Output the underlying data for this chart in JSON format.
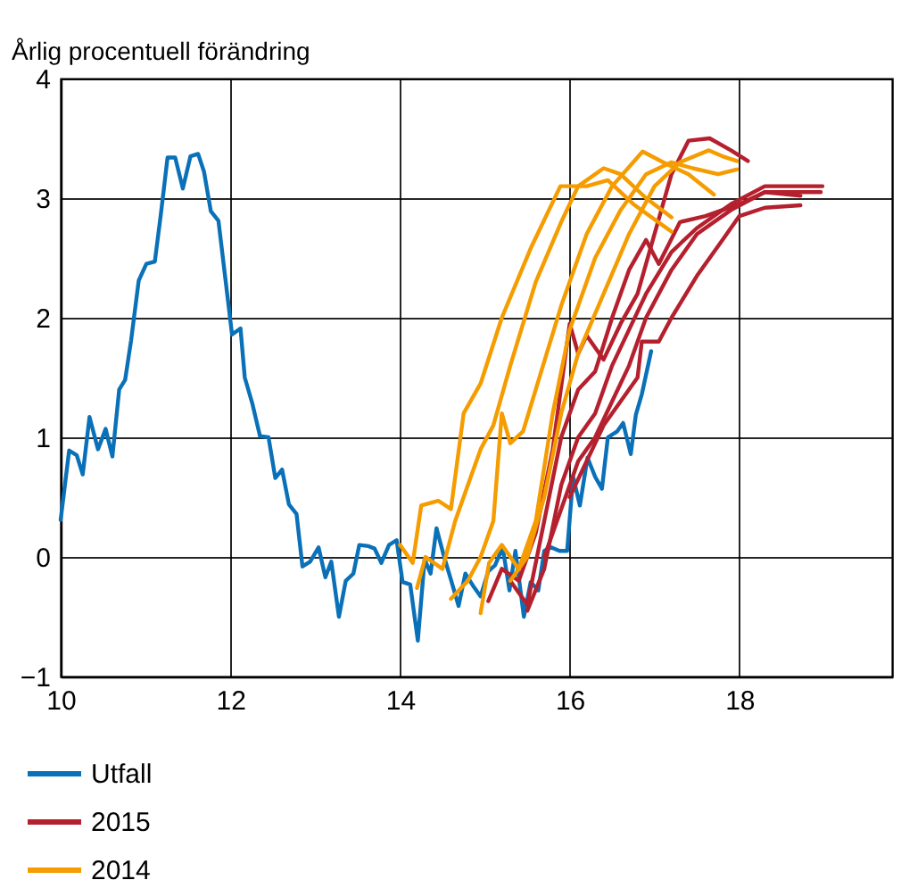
{
  "chart_data": {
    "type": "line",
    "ylabel": "Årlig procentuell förändring",
    "xlim": [
      10,
      19.8
    ],
    "xticks": [
      10,
      12,
      14,
      16,
      18
    ],
    "ylim": [
      -1,
      4
    ],
    "yticks": [
      -1,
      0,
      1,
      2,
      3,
      4
    ],
    "grid": true,
    "legend": "bottom",
    "line_style": "solid",
    "marker": "none",
    "series": [
      {
        "name": "Utfall",
        "color": "#0a71b8",
        "x": [
          10.0,
          10.1,
          10.19,
          10.26,
          10.34,
          10.44,
          10.53,
          10.61,
          10.69,
          10.76,
          10.83,
          10.92,
          11.01,
          11.11,
          11.18,
          11.26,
          11.35,
          11.44,
          11.53,
          11.62,
          11.69,
          11.77,
          11.86,
          12.02,
          12.12,
          12.17,
          12.26,
          12.35,
          12.45,
          12.53,
          12.61,
          12.69,
          12.78,
          12.85,
          12.94,
          13.04,
          13.12,
          13.19,
          13.28,
          13.36,
          13.45,
          13.52,
          13.63,
          13.7,
          13.78,
          13.87,
          13.96,
          14.03,
          14.12,
          14.21,
          14.29,
          14.36,
          14.43,
          14.52,
          14.6,
          14.69,
          14.77,
          14.86,
          14.95,
          15.04,
          15.12,
          15.21,
          15.29,
          15.36,
          15.46,
          15.54,
          15.63,
          15.7,
          15.78,
          15.88,
          15.97,
          16.04,
          16.12,
          16.21,
          16.3,
          16.38,
          16.45,
          16.56,
          16.63,
          16.72,
          16.78,
          16.85,
          16.96
        ],
        "values": [
          0.31,
          0.89,
          0.85,
          0.69,
          1.17,
          0.9,
          1.07,
          0.84,
          1.4,
          1.48,
          1.81,
          2.31,
          2.45,
          2.47,
          2.86,
          3.34,
          3.34,
          3.08,
          3.35,
          3.37,
          3.22,
          2.89,
          2.81,
          1.86,
          1.91,
          1.5,
          1.28,
          1.01,
          1.0,
          0.66,
          0.73,
          0.44,
          0.36,
          -0.08,
          -0.04,
          0.08,
          -0.17,
          -0.04,
          -0.5,
          -0.2,
          -0.14,
          0.1,
          0.09,
          0.07,
          -0.05,
          0.1,
          0.14,
          -0.21,
          -0.23,
          -0.7,
          -0.02,
          -0.14,
          0.24,
          0.0,
          -0.19,
          -0.41,
          -0.14,
          -0.24,
          -0.33,
          -0.12,
          -0.07,
          0.08,
          -0.28,
          0.05,
          -0.5,
          -0.21,
          -0.28,
          0.05,
          0.08,
          0.05,
          0.05,
          0.67,
          0.43,
          0.83,
          0.67,
          0.57,
          1.0,
          1.05,
          1.12,
          0.86,
          1.19,
          1.36,
          1.72
        ]
      },
      {
        "name": "2015",
        "color": "#b5202e",
        "x": [
          15.04,
          15.2,
          15.4,
          15.6,
          15.8,
          16.0,
          16.1,
          16.2,
          16.4,
          16.6,
          16.8,
          17.0,
          17.2,
          17.4,
          17.65,
          17.9,
          18.1
        ],
        "values": [
          -0.37,
          -0.1,
          -0.2,
          0.2,
          0.9,
          1.95,
          1.7,
          1.85,
          1.65,
          1.95,
          2.2,
          2.7,
          3.2,
          3.48,
          3.5,
          3.4,
          3.31
        ]
      },
      {
        "color": "#b5202e",
        "x": [
          15.3,
          15.5,
          15.7,
          15.9,
          16.1,
          16.3,
          16.5,
          16.7,
          16.9,
          17.05,
          17.3,
          17.6,
          18.0,
          18.3,
          18.72
        ],
        "values": [
          -0.2,
          -0.4,
          0.3,
          1.0,
          1.4,
          1.55,
          2.0,
          2.4,
          2.65,
          2.45,
          2.8,
          2.85,
          2.95,
          3.05,
          3.02
        ]
      },
      {
        "color": "#b5202e",
        "x": [
          15.5,
          15.7,
          15.9,
          16.1,
          16.3,
          16.5,
          16.7,
          16.9,
          17.2,
          17.5,
          17.9,
          18.3,
          18.98
        ],
        "values": [
          -0.45,
          -0.1,
          0.6,
          1.0,
          1.2,
          1.6,
          1.9,
          2.2,
          2.55,
          2.75,
          2.95,
          3.1,
          3.1
        ]
      },
      {
        "color": "#b5202e",
        "x": [
          15.7,
          15.9,
          16.1,
          16.3,
          16.5,
          16.7,
          16.9,
          17.2,
          17.5,
          17.9,
          18.3,
          18.96
        ],
        "values": [
          0.0,
          0.4,
          0.8,
          1.0,
          1.3,
          1.6,
          2.0,
          2.4,
          2.7,
          2.9,
          3.05,
          3.05
        ]
      },
      {
        "color": "#b5202e",
        "x": [
          16.0,
          16.2,
          16.4,
          16.6,
          16.8,
          16.85,
          17.05,
          17.2,
          17.5,
          17.8,
          18.0,
          18.3,
          18.72
        ],
        "values": [
          0.5,
          0.8,
          1.1,
          1.3,
          1.5,
          1.8,
          1.8,
          2.0,
          2.35,
          2.65,
          2.85,
          2.92,
          2.94
        ]
      },
      {
        "name": "2014",
        "color": "#f59c00",
        "x": [
          14.0,
          14.15,
          14.25,
          14.45,
          14.6,
          14.75,
          14.95,
          15.2,
          15.54,
          15.89,
          16.2,
          16.45,
          16.75,
          17.2
        ],
        "values": [
          0.1,
          -0.05,
          0.43,
          0.47,
          0.4,
          1.2,
          1.45,
          2.0,
          2.58,
          3.1,
          3.1,
          3.15,
          2.95,
          2.72
        ]
      },
      {
        "color": "#f59c00",
        "x": [
          14.2,
          14.3,
          14.5,
          14.65,
          14.8,
          14.95,
          15.1,
          15.3,
          15.6,
          15.9,
          16.1,
          16.4,
          16.6,
          16.9,
          17.2
        ],
        "values": [
          -0.26,
          0.0,
          -0.1,
          0.3,
          0.6,
          0.9,
          1.1,
          1.6,
          2.3,
          2.8,
          3.1,
          3.25,
          3.2,
          3.0,
          2.84
        ]
      },
      {
        "color": "#f59c00",
        "x": [
          14.6,
          14.8,
          14.95,
          15.1,
          15.2,
          15.3,
          15.45,
          15.6,
          15.9,
          16.2,
          16.5,
          16.86,
          17.1,
          17.4,
          17.7
        ],
        "values": [
          -0.35,
          -0.2,
          0.0,
          0.3,
          1.2,
          0.95,
          1.05,
          1.4,
          2.1,
          2.7,
          3.1,
          3.39,
          3.3,
          3.2,
          3.03
        ]
      },
      {
        "color": "#f59c00",
        "x": [
          14.95,
          15.05,
          15.2,
          15.4,
          15.6,
          15.8,
          16.0,
          16.3,
          16.6,
          16.9,
          17.2,
          17.45,
          17.75,
          17.97
        ],
        "values": [
          -0.47,
          -0.05,
          0.1,
          -0.1,
          0.3,
          1.2,
          1.9,
          2.5,
          2.9,
          3.2,
          3.3,
          3.25,
          3.2,
          3.24
        ]
      },
      {
        "color": "#f59c00",
        "x": [
          15.3,
          15.5,
          15.7,
          15.9,
          16.1,
          16.4,
          16.7,
          17.0,
          17.3,
          17.64,
          17.8,
          17.97
        ],
        "values": [
          -0.2,
          0.0,
          0.5,
          1.2,
          1.7,
          2.2,
          2.7,
          3.1,
          3.3,
          3.4,
          3.35,
          3.31
        ]
      }
    ]
  }
}
